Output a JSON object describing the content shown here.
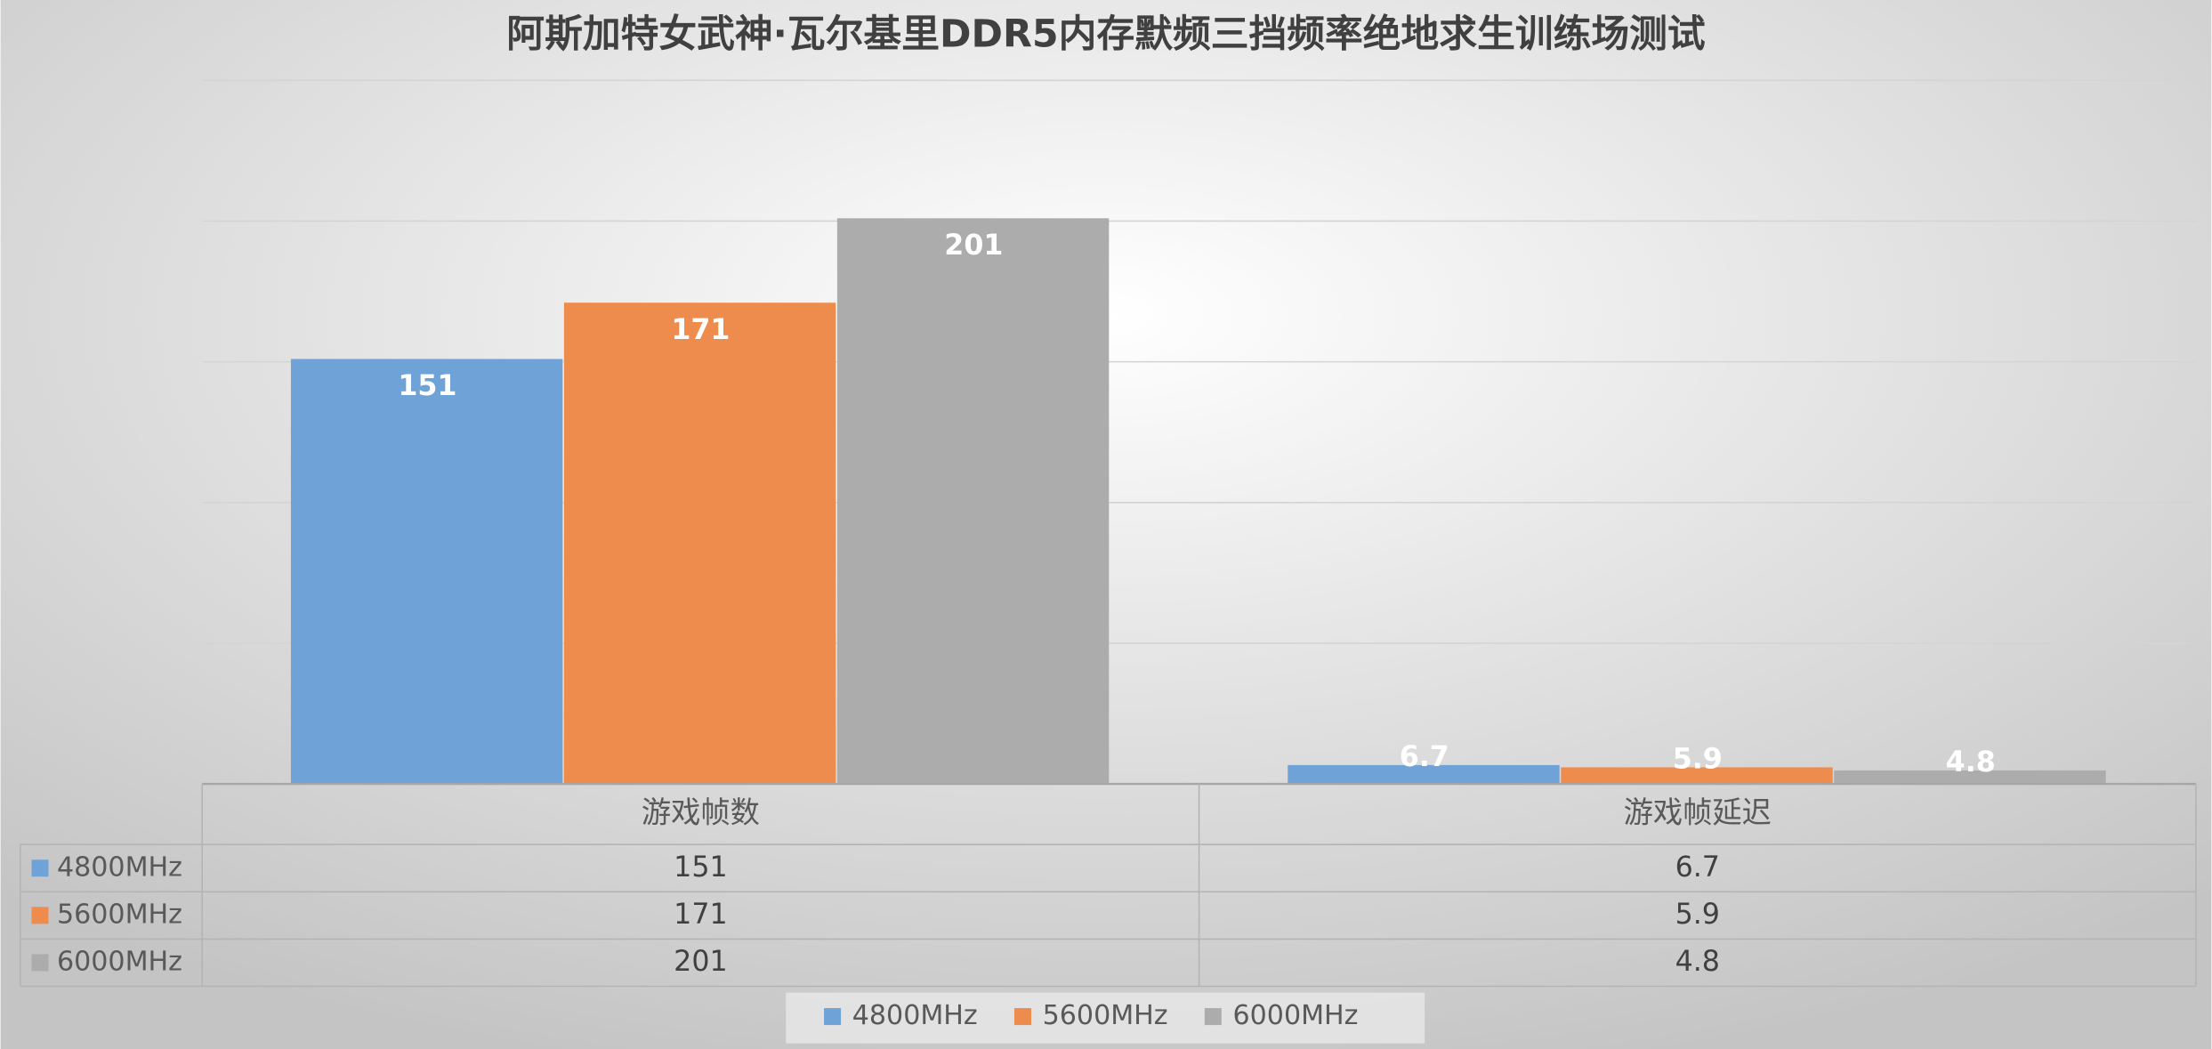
{
  "chart_data": {
    "type": "bar",
    "title": "阿斯加特女武神·瓦尔基里DDR5内存默频三挡频率绝地求生训练场测试",
    "categories": [
      "游戏帧数",
      "游戏帧延迟"
    ],
    "series": [
      {
        "name": "4800MHz",
        "color": "#6fa3d8",
        "values": [
          151,
          6.7
        ]
      },
      {
        "name": "5600MHz",
        "color": "#ed8c4d",
        "values": [
          171,
          5.9
        ]
      },
      {
        "name": "6000MHz",
        "color": "#acacac",
        "values": [
          201,
          4.8
        ]
      }
    ],
    "ylim": [
      0,
      250
    ],
    "yticks": [
      0,
      50,
      100,
      150,
      200,
      250
    ],
    "grid": true,
    "legend": "bottom",
    "data_table": true
  }
}
